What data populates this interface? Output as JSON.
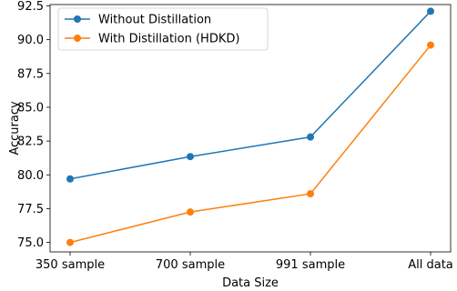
{
  "chart_data": {
    "type": "line",
    "title": "",
    "xlabel": "Data Size",
    "ylabel": "Accuracy",
    "categories": [
      "350 sample",
      "700 sample",
      "991 sample",
      "All data"
    ],
    "ylim": [
      74.3,
      92.6
    ],
    "yticks": [
      "75.0",
      "77.5",
      "80.0",
      "82.5",
      "85.0",
      "87.5",
      "90.0",
      "92.5"
    ],
    "grid": false,
    "legend_position": "top-left",
    "series": [
      {
        "name": "Without Distillation",
        "color": "#1f77b4",
        "marker": "circle",
        "values": [
          79.7,
          81.35,
          82.8,
          92.1
        ]
      },
      {
        "name": "With Distillation (HDKD)",
        "color": "#ff7f0e",
        "marker": "circle",
        "values": [
          75.0,
          77.25,
          78.6,
          89.6
        ]
      }
    ]
  }
}
